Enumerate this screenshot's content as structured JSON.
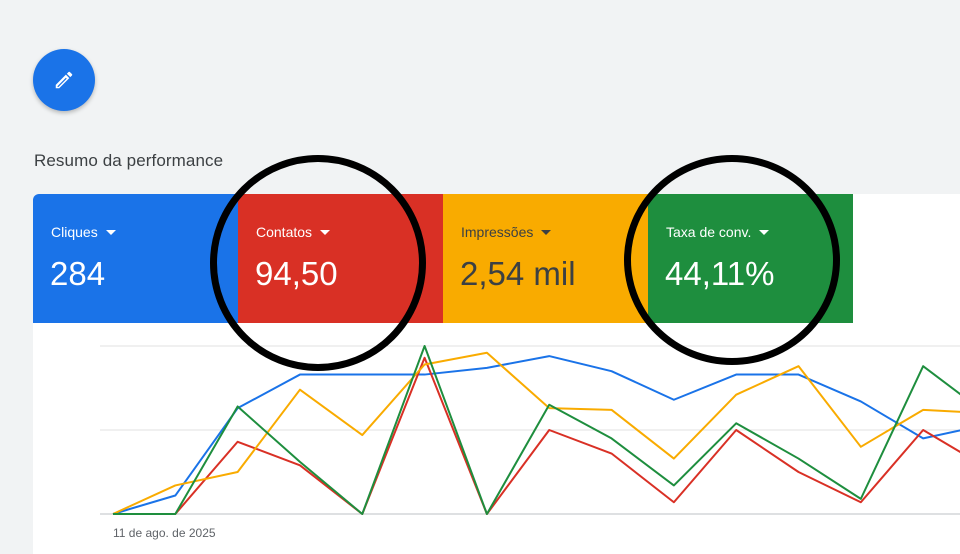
{
  "fab": {
    "icon": "pencil-icon"
  },
  "section_title": "Resumo da performance",
  "tiles": [
    {
      "label": "Cliques",
      "value": "284",
      "color": "#1a73e8",
      "text_color": "#ffffff"
    },
    {
      "label": "Contatos",
      "value": "94,50",
      "color": "#d93025",
      "text_color": "#ffffff"
    },
    {
      "label": "Impressões",
      "value": "2,54 mil",
      "color": "#f9ab00",
      "text_color": "#3c4043"
    },
    {
      "label": "Taxa de conv.",
      "value": "44,11%",
      "color": "#1e8e3e",
      "text_color": "#ffffff"
    }
  ],
  "chart_data": {
    "type": "line",
    "x_tick_label": "11 de ago. de 2025",
    "grid": true,
    "ylim": [
      0,
      1
    ],
    "series": [
      {
        "color": "#1a73e8",
        "values": [
          0.0,
          0.11,
          0.63,
          0.83,
          0.83,
          0.83,
          0.87,
          0.94,
          0.85,
          0.68,
          0.83,
          0.83,
          0.67,
          0.45,
          0.53
        ]
      },
      {
        "color": "#d93025",
        "values": [
          0.0,
          0.0,
          0.43,
          0.29,
          0.0,
          0.93,
          0.0,
          0.5,
          0.36,
          0.07,
          0.5,
          0.25,
          0.07,
          0.5,
          0.28
        ]
      },
      {
        "color": "#f9ab00",
        "values": [
          0.0,
          0.17,
          0.25,
          0.74,
          0.47,
          0.89,
          0.96,
          0.63,
          0.62,
          0.33,
          0.71,
          0.88,
          0.4,
          0.62,
          0.6
        ]
      },
      {
        "color": "#1e8e3e",
        "values": [
          0.0,
          0.0,
          0.64,
          0.31,
          0.0,
          1.0,
          0.0,
          0.65,
          0.45,
          0.17,
          0.54,
          0.33,
          0.09,
          0.88,
          0.6
        ]
      }
    ]
  },
  "annotations": {
    "circles": 2,
    "color": "#000000"
  }
}
